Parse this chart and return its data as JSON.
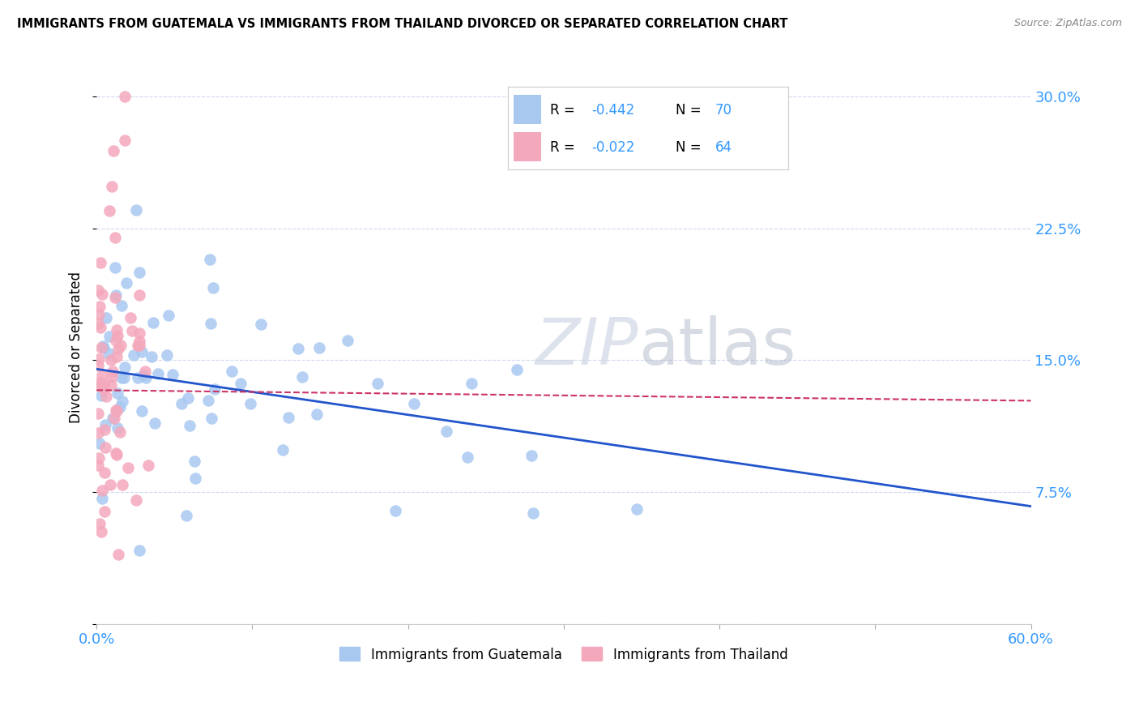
{
  "title": "IMMIGRANTS FROM GUATEMALA VS IMMIGRANTS FROM THAILAND DIVORCED OR SEPARATED CORRELATION CHART",
  "source": "Source: ZipAtlas.com",
  "ylabel": "Divorced or Separated",
  "xlim": [
    0.0,
    0.6
  ],
  "ylim": [
    0.0,
    0.315
  ],
  "legend1_r": "-0.442",
  "legend1_n": "70",
  "legend2_r": "-0.022",
  "legend2_n": "64",
  "color_guatemala": "#a8c8f0",
  "color_thailand": "#f4a8bc",
  "trendline_color_guatemala": "#2255cc",
  "trendline_color_thailand": "#cc3366",
  "watermark": "ZIPatlas",
  "tick_color": "#3399ff"
}
